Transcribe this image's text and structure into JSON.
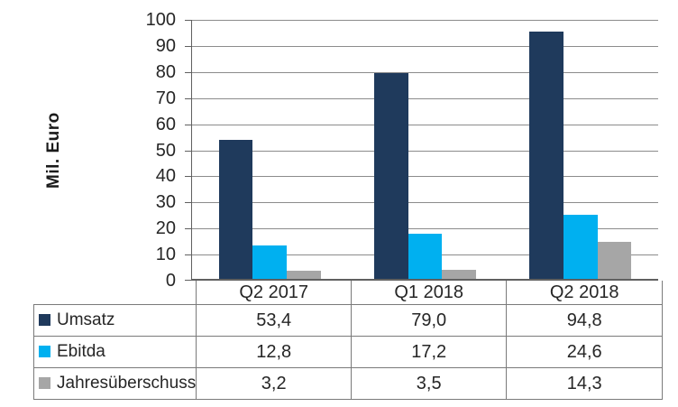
{
  "chart_data": {
    "type": "bar",
    "title": "",
    "ylabel": "Mil. Euro",
    "xlabel": "",
    "ylim": [
      0,
      100
    ],
    "ytick_step": 10,
    "yticks": [
      0,
      10,
      20,
      30,
      40,
      50,
      60,
      70,
      80,
      90,
      100
    ],
    "grid": true,
    "legend_position": "data-table-left-column",
    "data_table_shown": true,
    "categories": [
      "Q2 2017",
      "Q1 2018",
      "Q2 2018"
    ],
    "series": [
      {
        "name": "Umsatz",
        "values": [
          53.4,
          79.0,
          94.8
        ],
        "display_values": [
          "53,4",
          "79,0",
          "94,8"
        ],
        "color": "#1f3a5c"
      },
      {
        "name": "Ebitda",
        "values": [
          12.8,
          17.2,
          24.6
        ],
        "display_values": [
          "12,8",
          "17,2",
          "24,6"
        ],
        "color": "#00b0f0"
      },
      {
        "name": "Jahresüberschuss",
        "values": [
          3.2,
          3.5,
          14.3
        ],
        "display_values": [
          "3,2",
          "3,5",
          "14,3"
        ],
        "color": "#a6a6a6"
      }
    ]
  },
  "colors": {
    "background": "#ffffff",
    "gridline": "#8c8c8c",
    "axis": "#606060",
    "table_border": "#7a7a7a",
    "text": "#262626"
  }
}
